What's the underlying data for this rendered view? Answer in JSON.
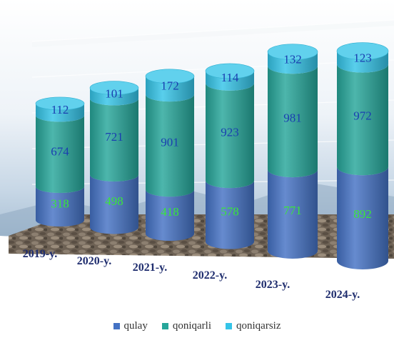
{
  "chart_data": {
    "type": "bar",
    "stacked": true,
    "style": "3d-cylinder",
    "categories": [
      "2019-y.",
      "2020-y.",
      "2021-y.",
      "2022-y.",
      "2023-y.",
      "2024-y."
    ],
    "series": [
      {
        "name": "qulay",
        "values": [
          318,
          498,
          418,
          578,
          771,
          892
        ],
        "color": "#4472C4",
        "label_color": "#39E639"
      },
      {
        "name": "qoniqarli",
        "values": [
          674,
          721,
          901,
          923,
          981,
          972
        ],
        "color": "#26A69A",
        "label_color": "#1A3FB0"
      },
      {
        "name": "qoniqarsiz",
        "values": [
          112,
          101,
          172,
          114,
          132,
          123
        ],
        "color": "#35C4E8",
        "label_color": "#1A3FB0"
      }
    ],
    "category_label_color": "#1F2D6E",
    "legend_position": "bottom",
    "grid": true
  }
}
